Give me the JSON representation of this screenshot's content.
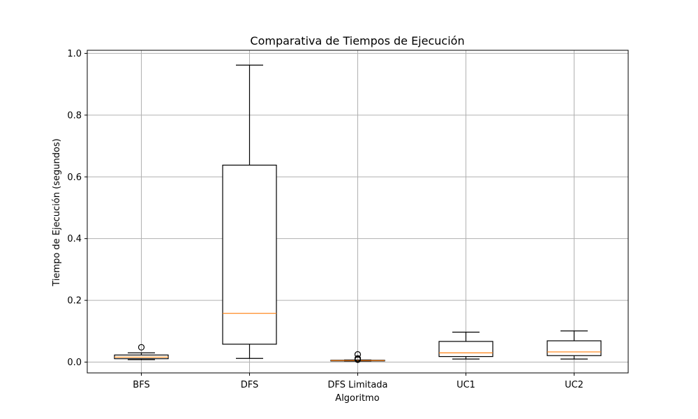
{
  "chart_data": {
    "type": "boxplot",
    "title": "Comparativa de Tiempos de Ejecución",
    "xlabel": "Algoritmo",
    "ylabel": "Tiempo de Ejecución (segundos)",
    "ylim": [
      -0.035,
      1.01
    ],
    "yticks": [
      "0.0",
      "0.2",
      "0.4",
      "0.6",
      "0.8",
      "1.0"
    ],
    "ytick_values": [
      0.0,
      0.2,
      0.4,
      0.6,
      0.8,
      1.0
    ],
    "grid": true,
    "categories": [
      "BFS",
      "DFS",
      "DFS Limitada",
      "UC1",
      "UC2"
    ],
    "boxes": [
      {
        "whisker_low": 0.008,
        "q1": 0.011,
        "median": 0.016,
        "q3": 0.023,
        "whisker_high": 0.03,
        "outliers": [
          0.048
        ]
      },
      {
        "whisker_low": 0.012,
        "q1": 0.058,
        "median": 0.158,
        "q3": 0.638,
        "whisker_high": 0.962,
        "outliers": []
      },
      {
        "whisker_low": 0.003,
        "q1": 0.004,
        "median": 0.005,
        "q3": 0.006,
        "whisker_high": 0.007,
        "outliers": [
          0.025,
          0.012,
          0.009,
          0.008
        ]
      },
      {
        "whisker_low": 0.01,
        "q1": 0.018,
        "median": 0.03,
        "q3": 0.067,
        "whisker_high": 0.097,
        "outliers": []
      },
      {
        "whisker_low": 0.01,
        "q1": 0.021,
        "median": 0.033,
        "q3": 0.069,
        "whisker_high": 0.101,
        "outliers": []
      }
    ],
    "colors": {
      "box": "#000000",
      "median": "#ff7f0e",
      "grid": "#b0b0b0"
    }
  }
}
